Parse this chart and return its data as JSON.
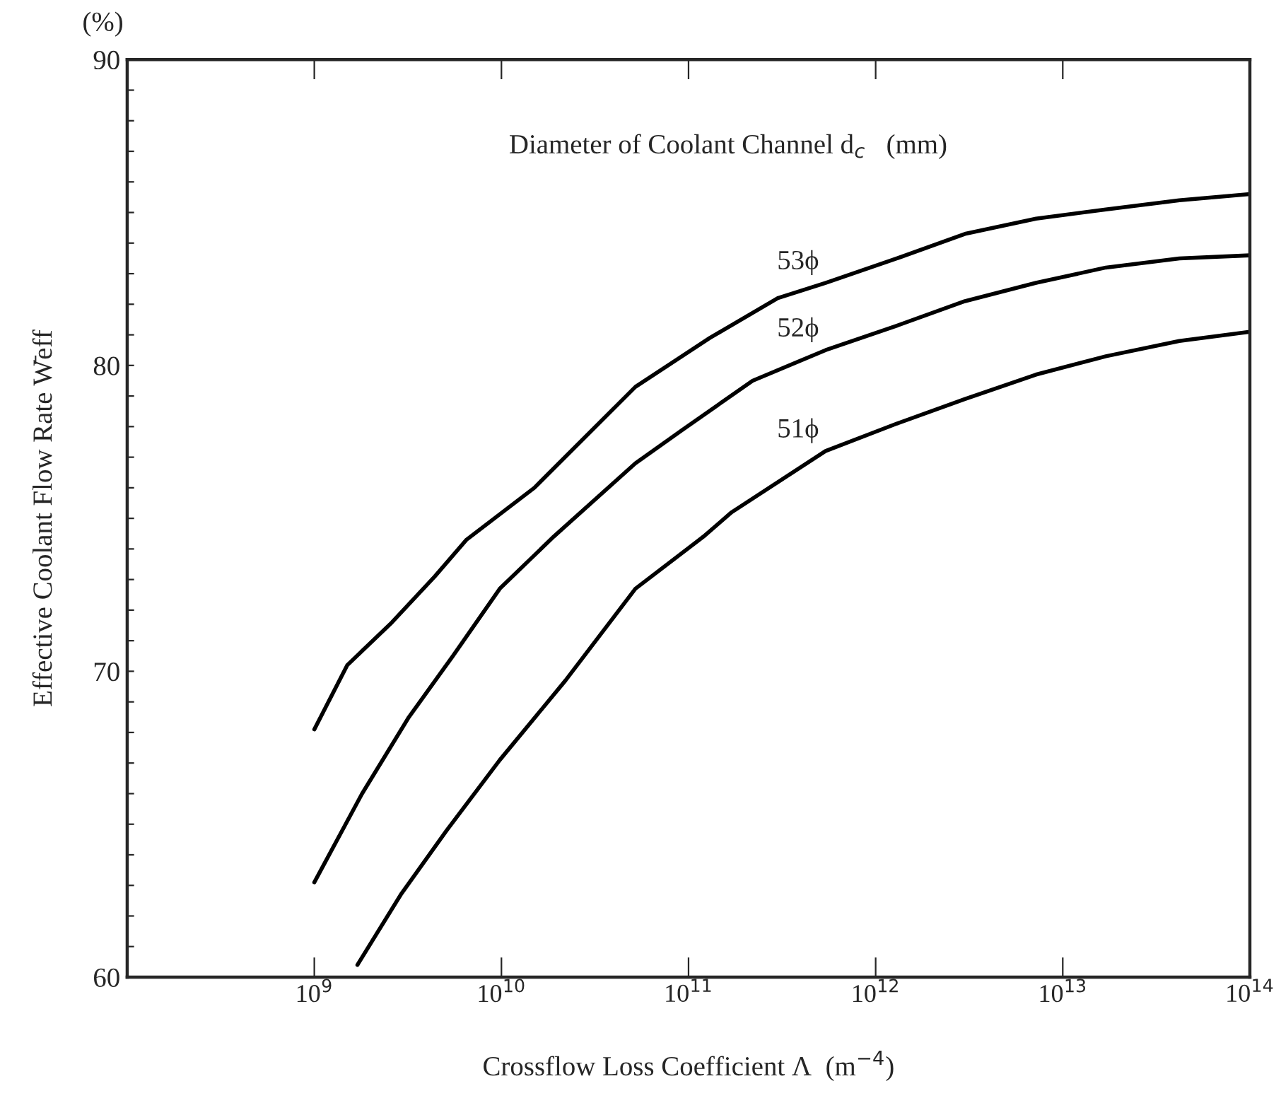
{
  "chart_data": {
    "type": "line",
    "xlabel": "Crossflow Loss Coefficient Λ  (m$^{−4}$)",
    "ylabel": "Effective Coolant Flow Rate W̄eff",
    "annotations": [
      "(%)",
      "Diameter of Coolant Channel d$_{c}$   (mm)"
    ],
    "log": "x",
    "grid": false,
    "marker": "none",
    "line_style": "solid",
    "xlim": [
      100000000.0,
      100000000000000.0
    ],
    "xticks": [
      {
        "value": 1000000000.0,
        "label": "10$^{9}$"
      },
      {
        "value": 10000000000.0,
        "label": "10$^{10}$"
      },
      {
        "value": 100000000000.0,
        "label": "10$^{11}$"
      },
      {
        "value": 1000000000000.0,
        "label": "10$^{12}$"
      },
      {
        "value": 10000000000000.0,
        "label": "10$^{13}$"
      },
      {
        "value": 100000000000000.0,
        "label": "10$^{14}$"
      }
    ],
    "ylim": [
      60,
      90
    ],
    "yticks": [
      60,
      {
        "value": 61,
        "label": null
      },
      {
        "value": 62,
        "label": null
      },
      {
        "value": 63,
        "label": null
      },
      {
        "value": 64,
        "label": null
      },
      {
        "value": 65,
        "label": null
      },
      {
        "value": 66,
        "label": null
      },
      {
        "value": 67,
        "label": null
      },
      {
        "value": 68,
        "label": null
      },
      {
        "value": 69,
        "label": null
      },
      70,
      {
        "value": 71,
        "label": null
      },
      {
        "value": 72,
        "label": null
      },
      {
        "value": 73,
        "label": null
      },
      {
        "value": 74,
        "label": null
      },
      {
        "value": 75,
        "label": null
      },
      {
        "value": 76,
        "label": null
      },
      {
        "value": 77,
        "label": null
      },
      {
        "value": 78,
        "label": null
      },
      {
        "value": 79,
        "label": null
      },
      80,
      {
        "value": 81,
        "label": null
      },
      {
        "value": 82,
        "label": null
      },
      {
        "value": 83,
        "label": null
      },
      {
        "value": 84,
        "label": null
      },
      {
        "value": 85,
        "label": null
      },
      {
        "value": 86,
        "label": null
      },
      {
        "value": 87,
        "label": null
      },
      {
        "value": 88,
        "label": null
      },
      {
        "value": 89,
        "label": null
      },
      90
    ],
    "series": [
      {
        "name": "53ϕ",
        "color": "#000000",
        "x": [
          1000000000.0,
          1500000000.0,
          2600000000.0,
          4400000000.0,
          6500000000.0,
          15000000000.0,
          52000000000.0,
          130000000000.0,
          300000000000.0,
          540000000000.0,
          1300000000000.0,
          3000000000000.0,
          7200000000000.0,
          17000000000000.0,
          42000000000000.0,
          100000000000000.0
        ],
        "values": [
          68.1,
          70.2,
          71.6,
          73.1,
          74.3,
          76.0,
          79.3,
          80.9,
          82.2,
          82.7,
          83.5,
          84.3,
          84.8,
          85.1,
          85.4,
          85.6
        ]
      },
      {
        "name": "52ϕ",
        "color": "#000000",
        "x": [
          1000000000.0,
          1800000000.0,
          3200000000.0,
          5500000000.0,
          9800000000.0,
          19000000000.0,
          52000000000.0,
          93000000000.0,
          220000000000.0,
          540000000000.0,
          1300000000000.0,
          3000000000000.0,
          7200000000000.0,
          17000000000000.0,
          42000000000000.0,
          100000000000000.0
        ],
        "values": [
          63.1,
          66.0,
          68.5,
          70.5,
          72.7,
          74.4,
          76.8,
          77.9,
          79.5,
          80.5,
          81.3,
          82.1,
          82.7,
          83.2,
          83.5,
          83.6
        ]
      },
      {
        "name": "51ϕ",
        "color": "#000000",
        "x": [
          1700000000.0,
          2900000000.0,
          5100000000.0,
          9800000000.0,
          22000000000.0,
          52000000000.0,
          120000000000.0,
          170000000000.0,
          540000000000.0,
          1300000000000.0,
          3000000000000.0,
          7200000000000.0,
          17000000000000.0,
          42000000000000.0,
          100000000000000.0
        ],
        "values": [
          60.4,
          62.7,
          64.8,
          67.1,
          69.7,
          72.7,
          74.4,
          75.2,
          77.2,
          78.1,
          78.9,
          79.7,
          80.3,
          80.8,
          81.1
        ]
      }
    ]
  }
}
